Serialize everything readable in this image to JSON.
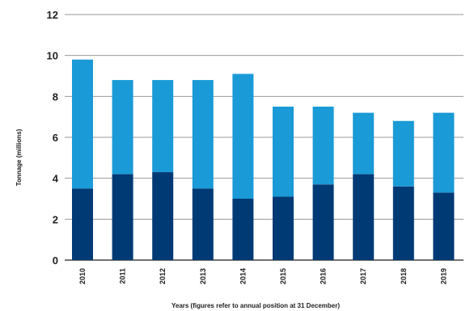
{
  "chart_data": {
    "type": "bar",
    "stacked": true,
    "categories": [
      "2010",
      "2011",
      "2012",
      "2013",
      "2014",
      "2015",
      "2016",
      "2017",
      "2018",
      "2019"
    ],
    "series": [
      {
        "values": [
          3.5,
          4.2,
          4.3,
          3.5,
          3.0,
          3.1,
          3.7,
          4.2,
          3.6,
          3.3
        ],
        "color": "#003a75"
      },
      {
        "values": [
          6.3,
          4.6,
          4.5,
          5.3,
          6.1,
          4.4,
          3.8,
          3.0,
          3.2,
          3.9
        ],
        "color": "#1a9ad6"
      }
    ],
    "ylabel": "Tonnage (millions)",
    "xlabel": "Years (figures refer to annual position at 31 December)",
    "ylim": [
      0,
      12
    ],
    "yticks": [
      0,
      2,
      4,
      6,
      8,
      10,
      12
    ],
    "grid": true
  }
}
